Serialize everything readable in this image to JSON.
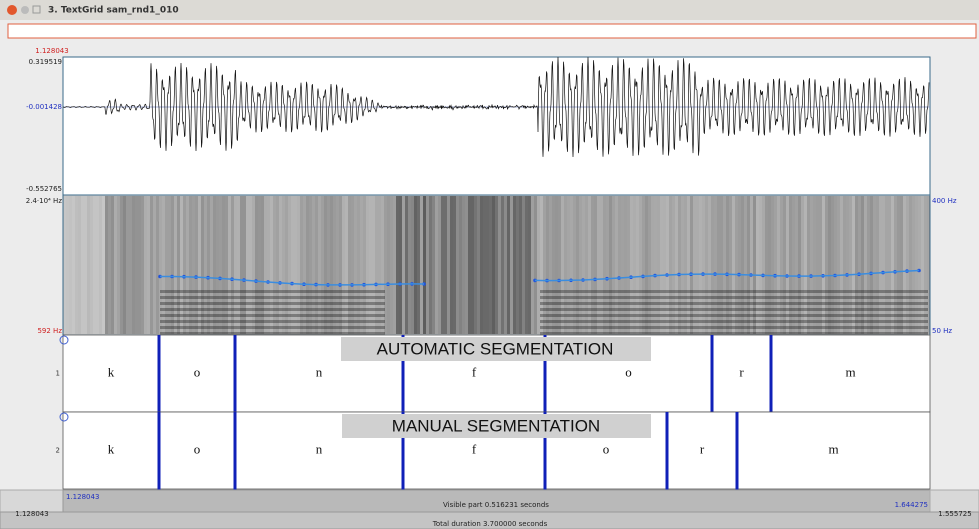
{
  "window": {
    "title": "3. TextGrid sam_rnd1_010"
  },
  "waveform": {
    "cursor_time": "1.128043",
    "y_max": "0.319519",
    "y_mid": "-0.001428",
    "y_min": "-0.552765"
  },
  "spectrogram": {
    "freq_max": "2.4·10⁴ Hz",
    "freq_min": "592 Hz",
    "pitch_max": "400 Hz",
    "pitch_min": "50 Hz"
  },
  "tiers": [
    {
      "number": "1",
      "banner": "AUTOMATIC SEGMENTATION",
      "intervals": [
        "k",
        "o",
        "n",
        "f",
        "o",
        "r",
        "m"
      ]
    },
    {
      "number": "2",
      "banner": "MANUAL SEGMENTATION",
      "intervals": [
        "k",
        "o",
        "n",
        "f",
        "o",
        "r",
        "m"
      ]
    }
  ],
  "footer": {
    "visible_start": "1.128043",
    "visible_part": "Visible part 0.516231 seconds",
    "visible_end": "1.644275",
    "window_start": "1.128043",
    "window_end": "1.555725",
    "total_duration": "Total duration 3.700000 seconds"
  }
}
